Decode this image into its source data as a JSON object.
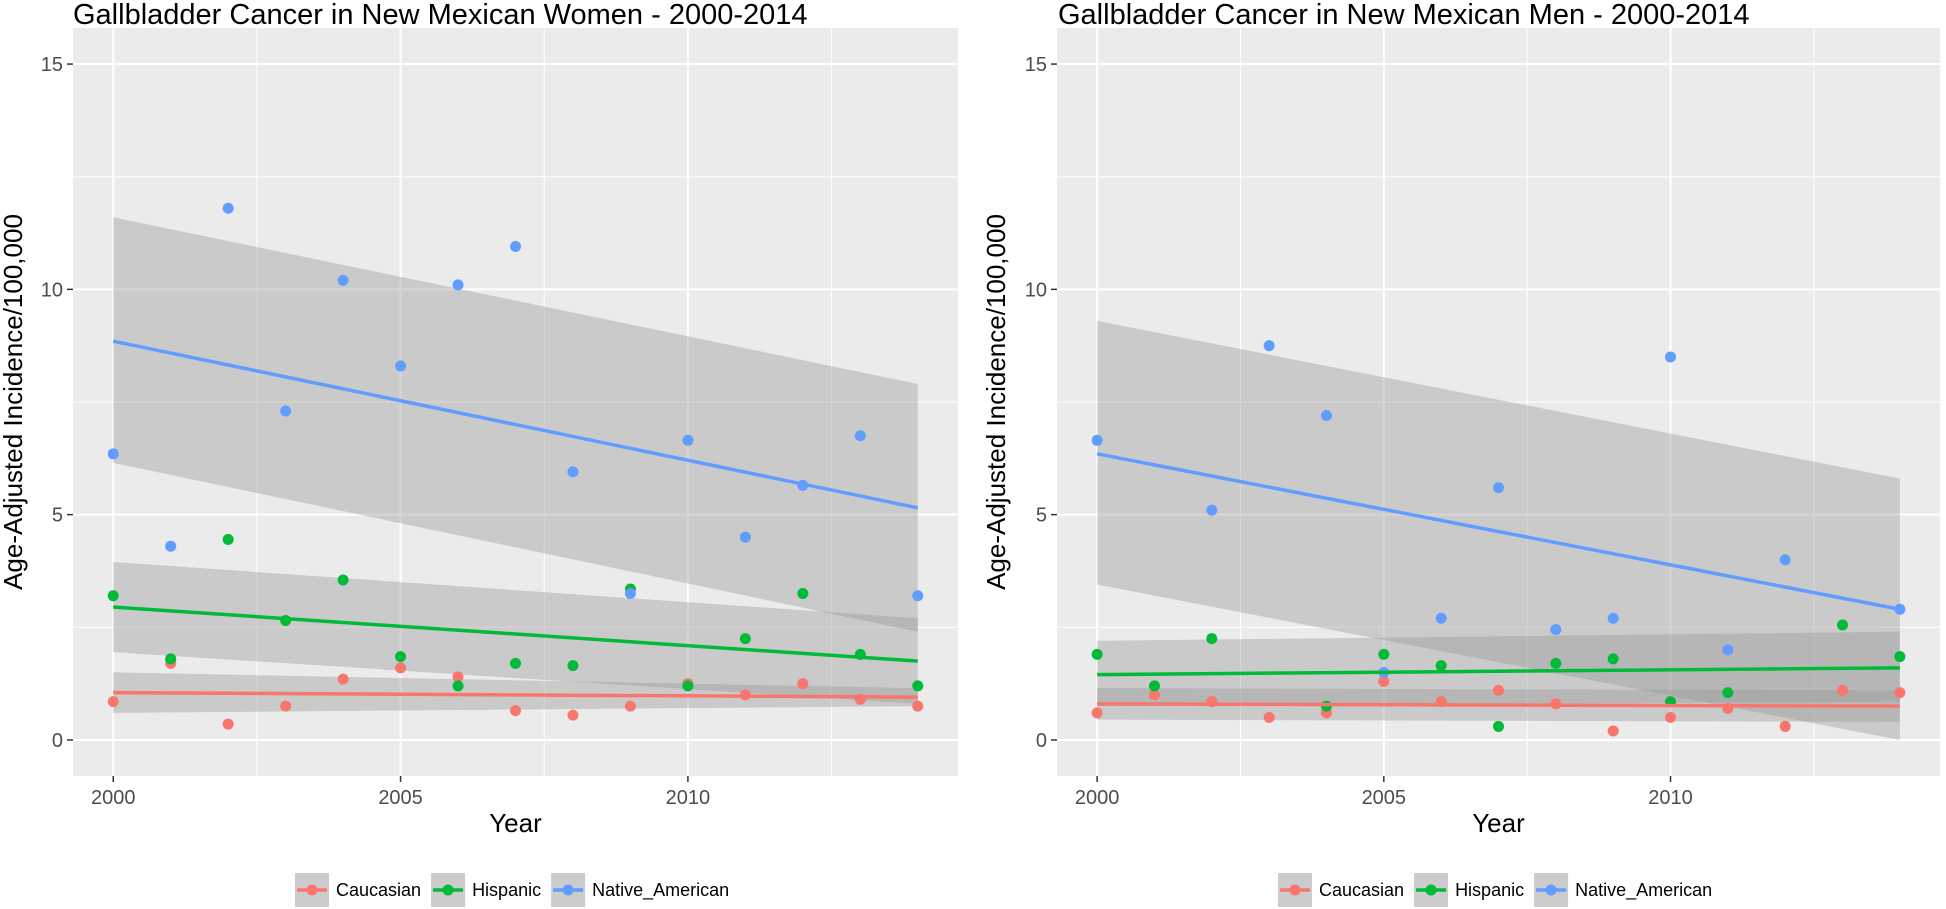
{
  "colors": {
    "Caucasian": "#F8766D",
    "Hispanic": "#00BA38",
    "Native_American": "#619CFF",
    "panel_bg": "#EBEBEB",
    "grid": "#FFFFFF",
    "ribbon": "#999999"
  },
  "chart_data": [
    {
      "type": "scatter",
      "title": "Gallbladder Cancer in New Mexican Women - 2000-2014",
      "xlabel": "Year",
      "ylabel": "Age-Adjusted Incidence/100,000",
      "xlim": [
        1999.3,
        2014.7
      ],
      "ylim": [
        -0.8,
        15.8
      ],
      "xticks": [
        2000,
        2005,
        2010
      ],
      "yticks": [
        0,
        5,
        10,
        15
      ],
      "grid": true,
      "legend_position": "bottom",
      "x": [
        2000,
        2001,
        2002,
        2003,
        2004,
        2005,
        2006,
        2007,
        2008,
        2009,
        2010,
        2011,
        2012,
        2013,
        2014
      ],
      "series": [
        {
          "name": "Caucasian",
          "values": [
            0.85,
            1.7,
            0.35,
            0.75,
            1.35,
            1.6,
            1.4,
            0.65,
            0.55,
            0.75,
            1.25,
            1.0,
            1.25,
            0.9,
            0.75
          ],
          "trend": [
            1.05,
            0.95
          ],
          "band": [
            [
              0.6,
              1.5
            ],
            [
              0.75,
              1.15
            ]
          ]
        },
        {
          "name": "Hispanic",
          "values": [
            3.2,
            1.8,
            4.45,
            2.65,
            3.55,
            1.85,
            1.2,
            1.7,
            1.65,
            3.35,
            1.2,
            2.25,
            3.25,
            1.9,
            1.2
          ],
          "trend": [
            2.95,
            1.75
          ],
          "band": [
            [
              1.95,
              3.95
            ],
            [
              0.8,
              2.7
            ]
          ]
        },
        {
          "name": "Native_American",
          "values": [
            6.35,
            4.3,
            11.8,
            7.3,
            10.2,
            8.3,
            10.1,
            10.95,
            5.95,
            3.25,
            6.65,
            4.5,
            5.65,
            6.75,
            3.2
          ],
          "trend": [
            8.85,
            5.15
          ],
          "band": [
            [
              6.15,
              11.6
            ],
            [
              2.4,
              7.9
            ]
          ]
        }
      ]
    },
    {
      "type": "scatter",
      "title": "Gallbladder Cancer in New Mexican Men - 2000-2014",
      "xlabel": "Year",
      "ylabel": "Age-Adjusted Incidence/100,000",
      "xlim": [
        1999.3,
        2014.7
      ],
      "ylim": [
        -0.8,
        15.8
      ],
      "xticks": [
        2000,
        2005,
        2010
      ],
      "yticks": [
        0,
        5,
        10,
        15
      ],
      "grid": true,
      "legend_position": "bottom",
      "x": [
        2000,
        2001,
        2002,
        2003,
        2004,
        2005,
        2006,
        2007,
        2008,
        2009,
        2010,
        2011,
        2012,
        2013,
        2014
      ],
      "series": [
        {
          "name": "Caucasian",
          "values": [
            0.6,
            1.0,
            0.85,
            0.5,
            0.6,
            1.3,
            0.85,
            1.1,
            0.8,
            0.2,
            0.5,
            0.7,
            0.3,
            1.1,
            1.05
          ],
          "trend": [
            0.8,
            0.75
          ],
          "band": [
            [
              0.45,
              1.15
            ],
            [
              0.4,
              1.1
            ]
          ]
        },
        {
          "name": "Hispanic",
          "values": [
            1.9,
            1.2,
            2.25,
            null,
            0.75,
            1.9,
            1.65,
            0.3,
            1.7,
            1.8,
            0.85,
            1.05,
            null,
            2.55,
            1.85
          ],
          "trend": [
            1.45,
            1.6
          ],
          "band": [
            [
              0.75,
              2.2
            ],
            [
              0.85,
              2.4
            ]
          ]
        },
        {
          "name": "Native_American",
          "values": [
            6.65,
            null,
            5.1,
            8.75,
            7.2,
            1.5,
            2.7,
            5.6,
            2.45,
            2.7,
            8.5,
            2.0,
            4.0,
            null,
            2.9
          ],
          "trend": [
            6.35,
            2.9
          ],
          "band": [
            [
              3.45,
              9.3
            ],
            [
              0.0,
              5.8
            ]
          ]
        }
      ]
    }
  ]
}
